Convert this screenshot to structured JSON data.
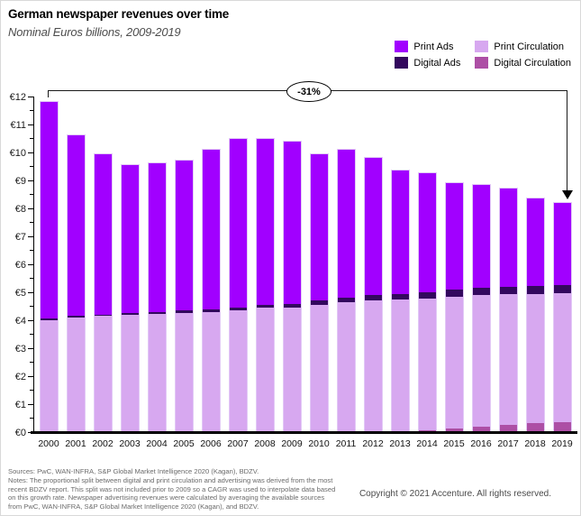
{
  "title": "German newspaper revenues over time",
  "subtitle": "Nominal Euros billions, 2009-2019",
  "legend": [
    {
      "label": "Print Ads",
      "color": "#A100FF"
    },
    {
      "label": "Print Circulation",
      "color": "#D7A8F0"
    },
    {
      "label": "Digital Ads",
      "color": "#33085E"
    },
    {
      "label": "Digital Circulation",
      "color": "#AD4FA5"
    }
  ],
  "annotation": {
    "label": "-31%"
  },
  "chart_data": {
    "type": "bar",
    "stacked": true,
    "title": "German newspaper revenues over time",
    "subtitle": "Nominal Euros billions, 2009-2019",
    "currency_prefix": "€",
    "ylim": [
      0,
      12
    ],
    "ytick_step": 1,
    "grid": false,
    "legend_position": "top-right",
    "categories": [
      "2000",
      "2001",
      "2002",
      "2003",
      "2004",
      "2005",
      "2006",
      "2007",
      "2008",
      "2009",
      "2010",
      "2011",
      "2012",
      "2013",
      "2014",
      "2015",
      "2016",
      "2017",
      "2018",
      "2019"
    ],
    "series": [
      {
        "name": "Digital Circulation",
        "color": "#AD4FA5",
        "values": [
          0,
          0,
          0,
          0,
          0,
          0,
          0,
          0,
          0,
          0,
          0,
          0,
          0,
          0,
          0.06,
          0.13,
          0.19,
          0.26,
          0.32,
          0.35
        ]
      },
      {
        "name": "Print Circulation",
        "color": "#D7A8F0",
        "values": [
          4.0,
          4.1,
          4.15,
          4.2,
          4.22,
          4.26,
          4.3,
          4.35,
          4.45,
          4.45,
          4.55,
          4.65,
          4.7,
          4.75,
          4.7,
          4.7,
          4.7,
          4.68,
          4.62,
          4.62
        ]
      },
      {
        "name": "Digital Ads",
        "color": "#33085E",
        "values": [
          0.05,
          0.05,
          0.05,
          0.06,
          0.07,
          0.08,
          0.09,
          0.1,
          0.1,
          0.12,
          0.15,
          0.16,
          0.19,
          0.2,
          0.23,
          0.26,
          0.26,
          0.25,
          0.29,
          0.29
        ]
      },
      {
        "name": "Print Ads",
        "color": "#A100FF",
        "values": [
          7.75,
          6.45,
          5.75,
          5.29,
          5.31,
          5.36,
          5.71,
          6.05,
          5.95,
          5.83,
          5.25,
          5.29,
          4.91,
          4.4,
          4.26,
          3.81,
          3.7,
          3.51,
          3.12,
          2.94
        ]
      }
    ],
    "totals": [
      11.8,
      10.6,
      9.95,
      9.55,
      9.6,
      9.7,
      10.1,
      10.5,
      10.5,
      10.4,
      9.95,
      10.1,
      9.8,
      9.35,
      9.25,
      8.9,
      8.85,
      8.7,
      8.35,
      8.2
    ],
    "annotation": "-31%"
  },
  "footer": {
    "notes_lines": [
      "Sources: PwC, WAN-INFRA, S&P Global Market Intelligence 2020 (Kagan), BDZV.",
      "Notes: The proportional split between digital and print circulation and advertising was derived from the most",
      "recent BDZV report. This split was not included prior to 2009 so a CAGR was used to interpolate data based",
      "on this growth rate. Newspaper advertising revenues were calculated by averaging the available sources",
      "from PwC, WAN-INFRA, S&P Global Market Intelligence 2020 (Kagan), and BDZV."
    ],
    "copyright": "Copyright © 2021 Accenture. All rights reserved."
  }
}
